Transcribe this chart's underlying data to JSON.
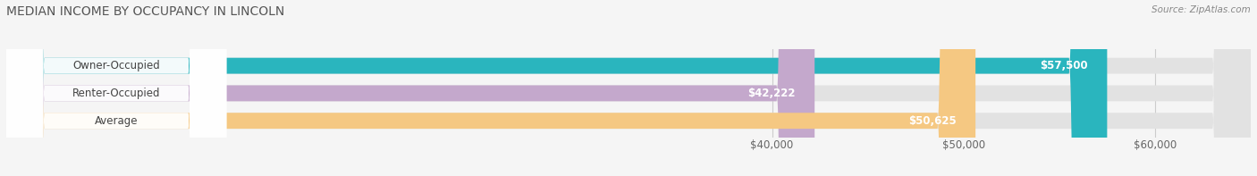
{
  "title": "MEDIAN INCOME BY OCCUPANCY IN LINCOLN",
  "source": "Source: ZipAtlas.com",
  "categories": [
    "Owner-Occupied",
    "Renter-Occupied",
    "Average"
  ],
  "values": [
    57500,
    42222,
    50625
  ],
  "bar_colors": [
    "#2ab5be",
    "#c4a8cc",
    "#f5c882"
  ],
  "bar_labels": [
    "$57,500",
    "$42,222",
    "$50,625"
  ],
  "xmin": 0,
  "xmax": 65000,
  "xticks": [
    40000,
    50000,
    60000
  ],
  "xtick_labels": [
    "$40,000",
    "$50,000",
    "$60,000"
  ],
  "bg_color": "#f5f5f5",
  "bar_bg_color": "#e2e2e2",
  "bar_height": 0.58,
  "label_fontsize": 8.5,
  "title_fontsize": 10,
  "value_label_color": "#ffffff"
}
